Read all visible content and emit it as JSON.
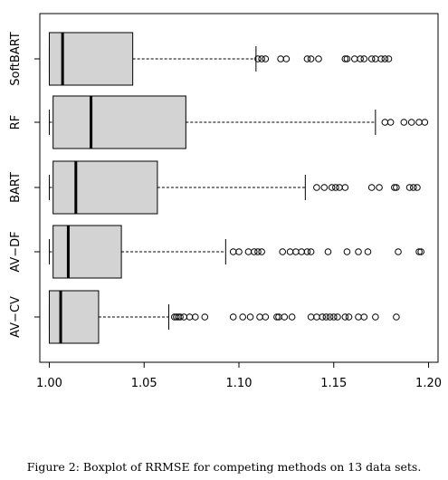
{
  "caption": "Figure 2: Boxplot of RRMSE for competing methods on 13 data sets.",
  "chart_data": {
    "type": "boxplot",
    "orientation": "horizontal",
    "xlim": [
      0.995,
      1.205
    ],
    "x_ticks": [
      1.0,
      1.05,
      1.1,
      1.15,
      1.2
    ],
    "x_tick_labels": [
      "1.00",
      "1.05",
      "1.10",
      "1.15",
      "1.20"
    ],
    "box_fill": "#d3d3d3",
    "categories": [
      "SoftBART",
      "RF",
      "BART",
      "AV−DF",
      "AV−CV"
    ],
    "boxes": [
      {
        "name": "SoftBART",
        "whisker_low": 1.0,
        "q1": 1.0,
        "median": 1.007,
        "q3": 1.044,
        "whisker_high": 1.109,
        "outliers": [
          1.11,
          1.112,
          1.114,
          1.122,
          1.125,
          1.136,
          1.138,
          1.142,
          1.156,
          1.157,
          1.161,
          1.164,
          1.166,
          1.17,
          1.172,
          1.175,
          1.177,
          1.179
        ]
      },
      {
        "name": "RF",
        "whisker_low": 1.0,
        "q1": 1.002,
        "median": 1.022,
        "q3": 1.072,
        "whisker_high": 1.172,
        "outliers": [
          1.177,
          1.18,
          1.187,
          1.191,
          1.195,
          1.198
        ]
      },
      {
        "name": "BART",
        "whisker_low": 1.0,
        "q1": 1.002,
        "median": 1.014,
        "q3": 1.057,
        "whisker_high": 1.135,
        "outliers": [
          1.141,
          1.145,
          1.149,
          1.151,
          1.153,
          1.156,
          1.17,
          1.174,
          1.182,
          1.183,
          1.19,
          1.192,
          1.194
        ]
      },
      {
        "name": "AV−DF",
        "whisker_low": 1.0,
        "q1": 1.002,
        "median": 1.01,
        "q3": 1.038,
        "whisker_high": 1.093,
        "outliers": [
          1.097,
          1.1,
          1.105,
          1.108,
          1.11,
          1.112,
          1.123,
          1.127,
          1.13,
          1.133,
          1.136,
          1.138,
          1.147,
          1.157,
          1.163,
          1.168,
          1.184,
          1.195,
          1.196
        ]
      },
      {
        "name": "AV−CV",
        "whisker_low": 1.0,
        "q1": 1.0,
        "median": 1.006,
        "q3": 1.026,
        "whisker_high": 1.063,
        "outliers": [
          1.066,
          1.067,
          1.068,
          1.069,
          1.071,
          1.074,
          1.077,
          1.082,
          1.097,
          1.102,
          1.106,
          1.111,
          1.114,
          1.12,
          1.121,
          1.124,
          1.128,
          1.138,
          1.141,
          1.144,
          1.146,
          1.148,
          1.15,
          1.152,
          1.156,
          1.158,
          1.163,
          1.166,
          1.172,
          1.183
        ]
      }
    ]
  }
}
